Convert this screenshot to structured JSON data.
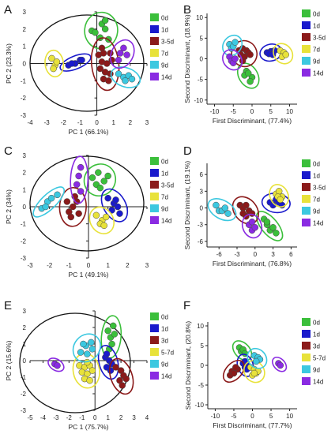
{
  "colors": {
    "0d": "#3bbf3b",
    "1d": "#1a1acc",
    "3-5d": "#8b1a1a",
    "3d": "#8b1a1a",
    "7d": "#e8e23a",
    "5-7d": "#e8e23a",
    "9d": "#3cc8e0",
    "14d": "#8a2be2"
  },
  "chart_data": [
    {
      "panel": "A",
      "type": "scatter",
      "xlabel": "PC 1 (66.1%)",
      "ylabel": "PC 2 (23.3%)",
      "xlim": [
        -4,
        3
      ],
      "ylim": [
        -3,
        3
      ],
      "xticks": [
        -4,
        -3,
        -2,
        -1,
        0,
        1,
        2,
        3
      ],
      "yticks": [
        -3,
        -2,
        -1,
        0,
        1,
        2,
        3
      ],
      "legend": [
        "0d",
        "1d",
        "3-5d",
        "7d",
        "9d",
        "14d"
      ],
      "series": [
        {
          "name": "0d",
          "points": [
            [
              -0.3,
              1.9
            ],
            [
              0.3,
              2.3
            ],
            [
              0.5,
              2.0
            ],
            [
              0.2,
              1.5
            ],
            [
              0.7,
              1.4
            ],
            [
              0.5,
              2.5
            ],
            [
              -0.1,
              1.8
            ]
          ]
        },
        {
          "name": "1d",
          "points": [
            [
              -1.7,
              -0.1
            ],
            [
              -1.3,
              0.0
            ],
            [
              -1.0,
              0.2
            ],
            [
              -0.9,
              0.2
            ],
            [
              -1.5,
              0.0
            ]
          ]
        },
        {
          "name": "3-5d",
          "points": [
            [
              0.1,
              0.5
            ],
            [
              0.4,
              0.6
            ],
            [
              0.8,
              0.6
            ],
            [
              0.3,
              0.1
            ],
            [
              0.6,
              0.0
            ],
            [
              0.9,
              0.2
            ],
            [
              0.2,
              -0.3
            ],
            [
              0.5,
              -0.5
            ],
            [
              0.8,
              -0.6
            ],
            [
              0.4,
              -0.9
            ],
            [
              0.7,
              -1.0
            ],
            [
              0.3,
              0.9
            ]
          ]
        },
        {
          "name": "7d",
          "points": [
            [
              -2.7,
              0.3
            ],
            [
              -2.5,
              -0.1
            ],
            [
              -2.4,
              0.1
            ],
            [
              -2.6,
              -0.3
            ]
          ]
        },
        {
          "name": "9d",
          "points": [
            [
              1.3,
              -0.6
            ],
            [
              1.6,
              -0.8
            ],
            [
              1.9,
              -0.7
            ],
            [
              2.1,
              -0.9
            ],
            [
              1.7,
              -1.0
            ]
          ]
        },
        {
          "name": "14d",
          "points": [
            [
              1.4,
              0.6
            ],
            [
              1.6,
              0.9
            ],
            [
              1.8,
              0.5
            ],
            [
              1.3,
              0.2
            ]
          ]
        }
      ]
    },
    {
      "panel": "B",
      "type": "scatter",
      "xlabel": "First Discriminant, (77.4%)",
      "ylabel": "Second Discriminant, (18.9%)",
      "xlim": [
        -12,
        12
      ],
      "ylim": [
        -11,
        11
      ],
      "xticks": [
        -10,
        -5,
        0,
        5,
        10
      ],
      "yticks": [
        -10,
        -5,
        0,
        5,
        10
      ],
      "legend": [
        "0d",
        "1d",
        "3-5d",
        "7d",
        "9d",
        "14d"
      ],
      "series": [
        {
          "name": "0d",
          "points": [
            [
              -1.5,
              -3.0
            ],
            [
              0.0,
              -4.5
            ],
            [
              -0.5,
              -5.5
            ],
            [
              -2.0,
              -4.0
            ],
            [
              -1.0,
              -3.5
            ]
          ]
        },
        {
          "name": "1d",
          "points": [
            [
              4.0,
              1.5
            ],
            [
              5.0,
              1.8
            ],
            [
              6.0,
              2.0
            ],
            [
              4.5,
              1.2
            ],
            [
              5.5,
              1.0
            ]
          ]
        },
        {
          "name": "3-5d",
          "points": [
            [
              -3.5,
              2.0
            ],
            [
              -2.5,
              2.5
            ],
            [
              -1.5,
              2.0
            ],
            [
              -3.0,
              1.0
            ],
            [
              -1.0,
              1.5
            ],
            [
              -2.0,
              0.5
            ],
            [
              -0.5,
              1.0
            ],
            [
              -2.5,
              -0.5
            ]
          ]
        },
        {
          "name": "7d",
          "points": [
            [
              7.5,
              2.0
            ],
            [
              8.5,
              1.5
            ],
            [
              8.0,
              0.5
            ],
            [
              9.0,
              1.0
            ]
          ]
        },
        {
          "name": "9d",
          "points": [
            [
              -6.0,
              3.5
            ],
            [
              -5.5,
              2.5
            ],
            [
              -5.0,
              3.0
            ],
            [
              -4.5,
              4.0
            ]
          ]
        },
        {
          "name": "14d",
          "points": [
            [
              -6.0,
              0.5
            ],
            [
              -5.5,
              -0.5
            ],
            [
              -5.0,
              -1.0
            ],
            [
              -4.5,
              0.0
            ]
          ]
        }
      ]
    },
    {
      "panel": "C",
      "type": "scatter",
      "xlabel": "PC 1 (49.1%)",
      "ylabel": "PC 2 (34%)",
      "xlim": [
        -3,
        3
      ],
      "ylim": [
        -3,
        3
      ],
      "xticks": [
        -3,
        -2,
        -1,
        0,
        1,
        2,
        3
      ],
      "yticks": [
        -3,
        -2,
        -1,
        0,
        1,
        2,
        3
      ],
      "legend": [
        "0d",
        "1d",
        "3-5d",
        "7d",
        "9d",
        "14d"
      ],
      "series": [
        {
          "name": "0d",
          "points": [
            [
              0.2,
              1.7
            ],
            [
              0.5,
              2.0
            ],
            [
              0.8,
              1.5
            ],
            [
              0.4,
              1.3
            ],
            [
              1.0,
              1.8
            ],
            [
              0.6,
              1.1
            ]
          ]
        },
        {
          "name": "1d",
          "points": [
            [
              1.0,
              0.5
            ],
            [
              1.3,
              0.2
            ],
            [
              1.2,
              -0.2
            ],
            [
              1.5,
              0.0
            ],
            [
              1.4,
              0.4
            ],
            [
              1.6,
              -0.4
            ]
          ]
        },
        {
          "name": "3-5d",
          "points": [
            [
              -1.1,
              0.3
            ],
            [
              -0.8,
              0.0
            ],
            [
              -0.6,
              0.3
            ],
            [
              -1.0,
              -0.3
            ],
            [
              -0.5,
              -0.4
            ],
            [
              -0.9,
              -0.6
            ],
            [
              -0.7,
              0.6
            ]
          ]
        },
        {
          "name": "7d",
          "points": [
            [
              0.4,
              -0.5
            ],
            [
              0.7,
              -0.8
            ],
            [
              0.9,
              -0.6
            ],
            [
              0.6,
              -1.0
            ],
            [
              0.8,
              -1.1
            ]
          ]
        },
        {
          "name": "9d",
          "points": [
            [
              -2.4,
              -0.1
            ],
            [
              -2.1,
              0.3
            ],
            [
              -1.9,
              0.5
            ],
            [
              -1.6,
              0.7
            ],
            [
              -2.2,
              0.0
            ]
          ]
        },
        {
          "name": "14d",
          "points": [
            [
              -0.5,
              1.8
            ],
            [
              -0.4,
              2.3
            ],
            [
              -0.6,
              1.3
            ],
            [
              -0.4,
              0.9
            ]
          ]
        }
      ]
    },
    {
      "panel": "D",
      "type": "scatter",
      "xlabel": "First Discriminant, (76.8%)",
      "ylabel": "Second Discriminant, (19.1%)",
      "xlim": [
        -8,
        7
      ],
      "ylim": [
        -7,
        8
      ],
      "xticks": [
        -6,
        -3,
        0,
        3,
        6
      ],
      "yticks": [
        -6,
        -3,
        0,
        3,
        6
      ],
      "legend": [
        "0d",
        "1d",
        "3-5d",
        "7d",
        "9d",
        "14d"
      ],
      "series": [
        {
          "name": "0d",
          "points": [
            [
              1.5,
              -2.0
            ],
            [
              2.0,
              -3.0
            ],
            [
              2.5,
              -4.0
            ],
            [
              3.0,
              -3.5
            ],
            [
              3.5,
              -4.5
            ],
            [
              2.0,
              -2.5
            ]
          ]
        },
        {
          "name": "1d",
          "points": [
            [
              2.5,
              1.0
            ],
            [
              3.5,
              1.5
            ],
            [
              4.0,
              1.0
            ],
            [
              4.5,
              0.5
            ],
            [
              3.0,
              0.5
            ]
          ]
        },
        {
          "name": "3-5d",
          "points": [
            [
              -2.5,
              0.5
            ],
            [
              -2.0,
              0.0
            ],
            [
              -1.5,
              0.5
            ],
            [
              -1.0,
              -0.5
            ],
            [
              -2.0,
              -1.0
            ],
            [
              -1.5,
              -1.5
            ],
            [
              -0.5,
              -1.0
            ]
          ]
        },
        {
          "name": "7d",
          "points": [
            [
              3.5,
              2.5
            ],
            [
              4.0,
              3.0
            ],
            [
              4.5,
              2.0
            ],
            [
              3.8,
              2.0
            ],
            [
              4.2,
              1.5
            ]
          ]
        },
        {
          "name": "9d",
          "points": [
            [
              -6.5,
              0.5
            ],
            [
              -6.0,
              -0.5
            ],
            [
              -5.5,
              -0.5
            ],
            [
              -4.5,
              -1.0
            ],
            [
              -5.0,
              0.0
            ]
          ]
        },
        {
          "name": "14d",
          "points": [
            [
              -1.0,
              -3.0
            ],
            [
              -0.5,
              -4.0
            ],
            [
              0.0,
              -3.5
            ],
            [
              -0.5,
              -2.5
            ]
          ]
        }
      ]
    },
    {
      "panel": "E",
      "type": "scatter",
      "xlabel": "PC 1 (75.7%)",
      "ylabel": "PC 2 (15.6%)",
      "xlim": [
        -5,
        4
      ],
      "ylim": [
        -3,
        3
      ],
      "xticks": [
        -5,
        -4,
        -3,
        -2,
        -1,
        0,
        1,
        2,
        3,
        4
      ],
      "yticks": [
        -3,
        -2,
        -1,
        0,
        1,
        2,
        3
      ],
      "legend": [
        "0d",
        "1d",
        "3d",
        "5-7d",
        "9d",
        "14d"
      ],
      "series": [
        {
          "name": "0d",
          "points": [
            [
              1.0,
              1.8
            ],
            [
              1.2,
              1.4
            ],
            [
              1.3,
              1.0
            ],
            [
              1.5,
              1.6
            ],
            [
              1.1,
              0.7
            ],
            [
              1.4,
              2.1
            ]
          ]
        },
        {
          "name": "1d",
          "points": [
            [
              0.8,
              0.2
            ],
            [
              1.1,
              0.0
            ],
            [
              1.3,
              -0.2
            ],
            [
              0.9,
              -0.4
            ],
            [
              1.2,
              -0.6
            ],
            [
              0.9,
              0.4
            ]
          ]
        },
        {
          "name": "3d",
          "points": [
            [
              1.6,
              -0.4
            ],
            [
              2.0,
              -0.6
            ],
            [
              2.2,
              -0.9
            ],
            [
              1.9,
              -1.2
            ],
            [
              2.4,
              -1.1
            ],
            [
              2.1,
              -1.5
            ]
          ]
        },
        {
          "name": "5-7d",
          "points": [
            [
              -1.2,
              -0.3
            ],
            [
              -0.8,
              -0.4
            ],
            [
              -0.4,
              -0.3
            ],
            [
              -1.0,
              -0.7
            ],
            [
              -0.6,
              -0.8
            ],
            [
              -0.2,
              -0.6
            ],
            [
              -0.8,
              -1.1
            ],
            [
              -0.4,
              -1.2
            ],
            [
              -0.6,
              -0.1
            ]
          ]
        },
        {
          "name": "9d",
          "points": [
            [
              -1.1,
              0.5
            ],
            [
              -0.7,
              0.9
            ],
            [
              -0.3,
              1.1
            ],
            [
              -0.6,
              0.4
            ],
            [
              -0.2,
              0.7
            ],
            [
              -0.9,
              1.0
            ]
          ]
        },
        {
          "name": "14d",
          "points": [
            [
              -3.1,
              -0.2
            ],
            [
              -2.9,
              -0.3
            ]
          ]
        }
      ]
    },
    {
      "panel": "F",
      "type": "scatter",
      "xlabel": "First Discriminant, (77.7%)",
      "ylabel": "Second Discriminant, (20.8%)",
      "xlim": [
        -12,
        12
      ],
      "ylim": [
        -11,
        11
      ],
      "xticks": [
        -10,
        -5,
        0,
        5,
        10
      ],
      "yticks": [
        -10,
        -5,
        0,
        5,
        10
      ],
      "legend": [
        "0d",
        "1d",
        "3d",
        "5-7d",
        "9d",
        "14d"
      ],
      "series": [
        {
          "name": "0d",
          "points": [
            [
              -3.5,
              4.5
            ],
            [
              -3.0,
              3.5
            ],
            [
              -2.5,
              4.0
            ],
            [
              -2.0,
              3.0
            ]
          ]
        },
        {
          "name": "1d",
          "points": [
            [
              -2.5,
              0.5
            ],
            [
              -2.0,
              -0.5
            ],
            [
              -1.5,
              0.0
            ],
            [
              -2.0,
              1.0
            ],
            [
              -1.5,
              -1.0
            ]
          ]
        },
        {
          "name": "3d",
          "points": [
            [
              -6.0,
              -2.5
            ],
            [
              -5.5,
              -1.5
            ],
            [
              -5.0,
              -2.0
            ],
            [
              -4.0,
              -1.0
            ],
            [
              -4.5,
              -0.5
            ]
          ]
        },
        {
          "name": "5-7d",
          "points": [
            [
              -0.5,
              -0.5
            ],
            [
              0.5,
              -1.0
            ],
            [
              1.0,
              -2.0
            ],
            [
              0.0,
              -2.5
            ],
            [
              1.5,
              -1.5
            ],
            [
              0.5,
              -2.0
            ]
          ]
        },
        {
          "name": "9d",
          "points": [
            [
              0.5,
              2.5
            ],
            [
              1.5,
              2.0
            ],
            [
              2.0,
              1.5
            ],
            [
              1.0,
              1.0
            ]
          ]
        },
        {
          "name": "14d",
          "points": [
            [
              7.0,
              0.5
            ],
            [
              7.5,
              0.0
            ]
          ]
        }
      ]
    }
  ]
}
